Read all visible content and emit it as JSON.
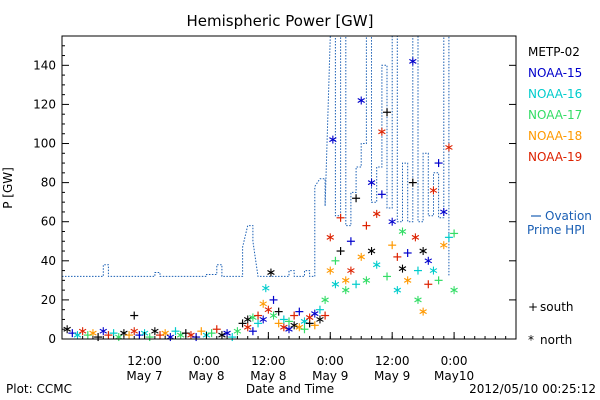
{
  "chart_data": {
    "type": "scatter",
    "title": "Hemispheric Power [GW]",
    "ylabel": "P [GW]",
    "xlabel": "Date and Time",
    "ylim": [
      0,
      155
    ],
    "xlim_hours": [
      -4,
      84
    ],
    "y_ticks": [
      0,
      20,
      40,
      60,
      80,
      100,
      120,
      140
    ],
    "x_ticks": [
      {
        "t": 12,
        "line1": "12:00",
        "line2": "May 7"
      },
      {
        "t": 24,
        "line1": "0:00",
        "line2": "May 8"
      },
      {
        "t": 36,
        "line1": "12:00",
        "line2": "May 8"
      },
      {
        "t": 48,
        "line1": "0:00",
        "line2": "May 9"
      },
      {
        "t": 60,
        "line1": "12:00",
        "line2": "May 9"
      },
      {
        "t": 72,
        "line1": "0:00",
        "line2": "May10"
      }
    ],
    "legend": [
      {
        "name": "METP-02",
        "color": "#000000"
      },
      {
        "name": "NOAA-15",
        "color": "#0000cc"
      },
      {
        "name": "NOAA-16",
        "color": "#00cccc"
      },
      {
        "name": "NOAA-17",
        "color": "#33dd66"
      },
      {
        "name": "NOAA-18",
        "color": "#ff9900"
      },
      {
        "name": "NOAA-19",
        "color": "#dd2200"
      }
    ],
    "ovation_label_1": "Ovation",
    "ovation_label_2": "Prime HPI",
    "ovation_color": "#1a5fb4",
    "marker_south": "south",
    "marker_north": "north",
    "ovation_series": [
      [
        -4,
        32
      ],
      [
        4,
        32
      ],
      [
        4,
        38
      ],
      [
        5,
        38
      ],
      [
        5,
        32
      ],
      [
        14,
        32
      ],
      [
        14,
        34
      ],
      [
        15,
        34
      ],
      [
        15,
        32
      ],
      [
        24,
        32
      ],
      [
        24,
        33
      ],
      [
        26,
        33
      ],
      [
        26,
        38
      ],
      [
        27,
        38
      ],
      [
        27,
        32
      ],
      [
        31,
        32
      ],
      [
        31,
        47
      ],
      [
        32,
        58
      ],
      [
        33,
        58
      ],
      [
        33,
        50
      ],
      [
        34,
        32
      ],
      [
        40,
        32
      ],
      [
        40,
        35
      ],
      [
        41,
        35
      ],
      [
        41,
        32
      ],
      [
        43,
        32
      ],
      [
        43,
        35
      ],
      [
        44,
        35
      ],
      [
        44,
        32
      ],
      [
        45,
        32
      ],
      [
        45,
        78
      ],
      [
        46,
        82
      ],
      [
        47,
        82
      ],
      [
        47,
        68
      ],
      [
        48,
        156
      ],
      [
        49,
        156
      ],
      [
        49,
        63
      ],
      [
        50,
        63
      ],
      [
        50,
        156
      ],
      [
        51,
        156
      ],
      [
        51,
        58
      ],
      [
        52,
        58
      ],
      [
        52,
        75
      ],
      [
        53,
        75
      ],
      [
        53,
        88
      ],
      [
        54,
        88
      ],
      [
        54,
        100
      ],
      [
        55,
        100
      ],
      [
        55,
        156
      ],
      [
        56,
        156
      ],
      [
        56,
        70
      ],
      [
        57,
        70
      ],
      [
        57,
        88
      ],
      [
        58,
        88
      ],
      [
        58,
        140
      ],
      [
        59,
        140
      ],
      [
        59,
        67
      ],
      [
        60,
        67
      ],
      [
        60,
        156
      ],
      [
        61,
        156
      ],
      [
        61,
        60
      ],
      [
        62,
        60
      ],
      [
        62,
        90
      ],
      [
        63,
        90
      ],
      [
        63,
        60
      ],
      [
        64,
        60
      ],
      [
        64,
        156
      ],
      [
        65,
        156
      ],
      [
        65,
        60
      ],
      [
        66,
        60
      ],
      [
        66,
        95
      ],
      [
        67,
        95
      ],
      [
        67,
        63
      ],
      [
        68,
        63
      ],
      [
        68,
        85
      ],
      [
        69,
        85
      ],
      [
        69,
        62
      ],
      [
        70,
        62
      ],
      [
        70,
        156
      ],
      [
        71,
        156
      ],
      [
        71,
        32
      ]
    ],
    "points": [
      [
        -3,
        5,
        "#000000",
        "*"
      ],
      [
        -2,
        3,
        "#0000cc",
        "+"
      ],
      [
        -1,
        2,
        "#00cccc",
        "*"
      ],
      [
        0,
        4,
        "#dd2200",
        "*"
      ],
      [
        1,
        2,
        "#33dd66",
        "+"
      ],
      [
        2,
        3,
        "#ff9900",
        "*"
      ],
      [
        3,
        1,
        "#000000",
        "+"
      ],
      [
        4,
        4,
        "#0000cc",
        "*"
      ],
      [
        5,
        2,
        "#dd2200",
        "+"
      ],
      [
        6,
        3,
        "#00cccc",
        "+"
      ],
      [
        7,
        1,
        "#33dd66",
        "*"
      ],
      [
        8,
        3,
        "#000000",
        "*"
      ],
      [
        9,
        2,
        "#ff9900",
        "+"
      ],
      [
        10,
        12,
        "#000000",
        "+"
      ],
      [
        10,
        4,
        "#dd2200",
        "*"
      ],
      [
        11,
        2,
        "#0000cc",
        "+"
      ],
      [
        12,
        3,
        "#00cccc",
        "*"
      ],
      [
        13,
        1,
        "#33dd66",
        "+"
      ],
      [
        14,
        4,
        "#000000",
        "*"
      ],
      [
        15,
        2,
        "#dd2200",
        "+"
      ],
      [
        16,
        3,
        "#ff9900",
        "*"
      ],
      [
        17,
        1,
        "#0000cc",
        "*"
      ],
      [
        18,
        4,
        "#00cccc",
        "+"
      ],
      [
        19,
        2,
        "#33dd66",
        "*"
      ],
      [
        20,
        3,
        "#000000",
        "+"
      ],
      [
        21,
        2,
        "#dd2200",
        "*"
      ],
      [
        22,
        1,
        "#0000cc",
        "+"
      ],
      [
        23,
        4,
        "#ff9900",
        "+"
      ],
      [
        24,
        2,
        "#00cccc",
        "*"
      ],
      [
        25,
        3,
        "#33dd66",
        "+"
      ],
      [
        26,
        5,
        "#dd2200",
        "+"
      ],
      [
        27,
        2,
        "#000000",
        "*"
      ],
      [
        28,
        3,
        "#0000cc",
        "*"
      ],
      [
        29,
        1,
        "#00cccc",
        "+"
      ],
      [
        30,
        4,
        "#33dd66",
        "*"
      ],
      [
        31,
        8,
        "#000000",
        "+"
      ],
      [
        32,
        10,
        "#000000",
        "*"
      ],
      [
        32,
        6,
        "#dd2200",
        "*"
      ],
      [
        33,
        4,
        "#0000cc",
        "+"
      ],
      [
        33,
        11,
        "#33dd66",
        "*"
      ],
      [
        34,
        8,
        "#00cccc",
        "+"
      ],
      [
        34,
        12,
        "#dd2200",
        "+"
      ],
      [
        35,
        18,
        "#ff9900",
        "*"
      ],
      [
        35,
        10,
        "#0000cc",
        "*"
      ],
      [
        35.5,
        26,
        "#00cccc",
        "*"
      ],
      [
        36,
        15,
        "#dd2200",
        "*"
      ],
      [
        36.5,
        34,
        "#000000",
        "*"
      ],
      [
        37,
        20,
        "#0000cc",
        "+"
      ],
      [
        37,
        12,
        "#33dd66",
        "*"
      ],
      [
        38,
        8,
        "#ff9900",
        "+"
      ],
      [
        38,
        14,
        "#000000",
        "+"
      ],
      [
        39,
        6,
        "#dd2200",
        "*"
      ],
      [
        39,
        10,
        "#00cccc",
        "+"
      ],
      [
        40,
        5,
        "#0000cc",
        "*"
      ],
      [
        40,
        9,
        "#33dd66",
        "+"
      ],
      [
        41,
        7,
        "#000000",
        "*"
      ],
      [
        41,
        12,
        "#dd2200",
        "+"
      ],
      [
        42,
        6,
        "#ff9900",
        "*"
      ],
      [
        42,
        14,
        "#0000cc",
        "+"
      ],
      [
        43,
        9,
        "#00cccc",
        "*"
      ],
      [
        43,
        5,
        "#33dd66",
        "+"
      ],
      [
        44,
        8,
        "#000000",
        "+"
      ],
      [
        44,
        11,
        "#dd2200",
        "*"
      ],
      [
        45,
        13,
        "#0000cc",
        "*"
      ],
      [
        45,
        7,
        "#ff9900",
        "+"
      ],
      [
        46,
        10,
        "#000000",
        "*"
      ],
      [
        46,
        15,
        "#00cccc",
        "+"
      ],
      [
        47,
        20,
        "#33dd66",
        "*"
      ],
      [
        47,
        12,
        "#dd2200",
        "+"
      ],
      [
        48,
        52,
        "#dd2200",
        "*"
      ],
      [
        48,
        35,
        "#ff9900",
        "*"
      ],
      [
        48.5,
        102,
        "#0000cc",
        "*"
      ],
      [
        49,
        28,
        "#00cccc",
        "*"
      ],
      [
        49,
        40,
        "#33dd66",
        "+"
      ],
      [
        50,
        62,
        "#dd2200",
        "+"
      ],
      [
        50,
        45,
        "#000000",
        "+"
      ],
      [
        51,
        30,
        "#ff9900",
        "*"
      ],
      [
        51,
        25,
        "#33dd66",
        "*"
      ],
      [
        52,
        50,
        "#0000cc",
        "+"
      ],
      [
        52,
        35,
        "#dd2200",
        "*"
      ],
      [
        53,
        72,
        "#000000",
        "+"
      ],
      [
        53,
        28,
        "#00cccc",
        "+"
      ],
      [
        54,
        122,
        "#0000cc",
        "*"
      ],
      [
        54,
        42,
        "#ff9900",
        "*"
      ],
      [
        55,
        58,
        "#dd2200",
        "+"
      ],
      [
        55,
        30,
        "#33dd66",
        "*"
      ],
      [
        56,
        80,
        "#0000cc",
        "*"
      ],
      [
        56,
        45,
        "#000000",
        "*"
      ],
      [
        57,
        64,
        "#dd2200",
        "*"
      ],
      [
        57,
        38,
        "#00cccc",
        "*"
      ],
      [
        58,
        74,
        "#0000cc",
        "+"
      ],
      [
        58,
        106,
        "#dd2200",
        "*"
      ],
      [
        59,
        116,
        "#000000",
        "+"
      ],
      [
        59,
        32,
        "#33dd66",
        "+"
      ],
      [
        60,
        60,
        "#0000cc",
        "*"
      ],
      [
        60,
        48,
        "#ff9900",
        "+"
      ],
      [
        61,
        42,
        "#dd2200",
        "+"
      ],
      [
        61,
        25,
        "#00cccc",
        "*"
      ],
      [
        62,
        36,
        "#000000",
        "*"
      ],
      [
        62,
        55,
        "#33dd66",
        "*"
      ],
      [
        63,
        30,
        "#ff9900",
        "*"
      ],
      [
        63,
        44,
        "#0000cc",
        "+"
      ],
      [
        64,
        80,
        "#000000",
        "+"
      ],
      [
        64,
        142,
        "#0000cc",
        "*"
      ],
      [
        64.5,
        52,
        "#dd2200",
        "*"
      ],
      [
        65,
        35,
        "#00cccc",
        "+"
      ],
      [
        65,
        20,
        "#33dd66",
        "*"
      ],
      [
        66,
        14,
        "#ff9900",
        "*"
      ],
      [
        66,
        45,
        "#000000",
        "*"
      ],
      [
        67,
        40,
        "#0000cc",
        "*"
      ],
      [
        67,
        28,
        "#dd2200",
        "+"
      ],
      [
        68,
        76,
        "#dd2200",
        "*"
      ],
      [
        68,
        35,
        "#00cccc",
        "*"
      ],
      [
        69,
        90,
        "#0000cc",
        "+"
      ],
      [
        69,
        30,
        "#33dd66",
        "+"
      ],
      [
        70,
        65,
        "#0000cc",
        "*"
      ],
      [
        70,
        48,
        "#ff9900",
        "*"
      ],
      [
        71,
        52,
        "#00cccc",
        "+"
      ],
      [
        71,
        98,
        "#dd2200",
        "*"
      ],
      [
        72,
        54,
        "#33dd66",
        "+"
      ],
      [
        72,
        25,
        "#33dd66",
        "*"
      ]
    ],
    "footer_left": "Plot: CCMC",
    "footer_right": "2012/05/10 00:25:12"
  }
}
